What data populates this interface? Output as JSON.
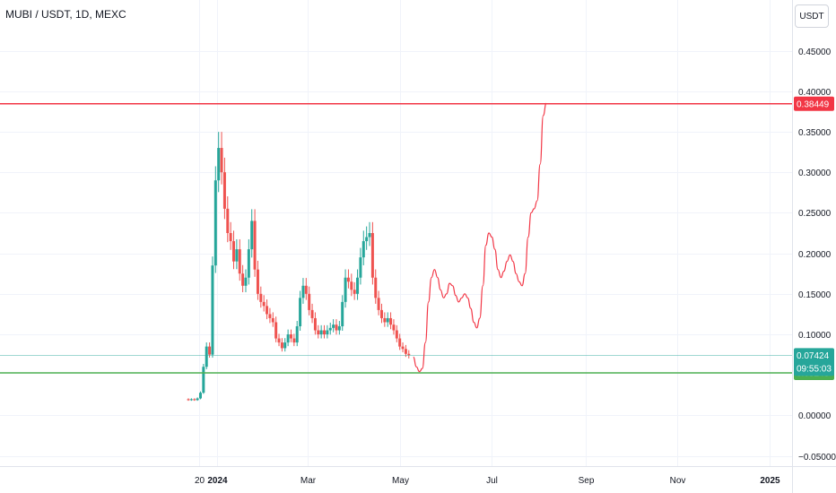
{
  "header": {
    "symbol": "MUBI / USDT, 1D, MEXC"
  },
  "currency_button": {
    "label": "USDT"
  },
  "colors": {
    "up": "#26a69a",
    "down": "#ef5350",
    "resistance": "#f23645",
    "support": "#4caf50",
    "projection": "#f23645",
    "grid": "#f0f3fa"
  },
  "chart_data": {
    "type": "candlestick",
    "title": "MUBI / USDT, 1D, MEXC",
    "ylim": [
      -0.0625,
      0.5125
    ],
    "y_ticks": [
      {
        "value": 0.45,
        "label": "0.45000"
      },
      {
        "value": 0.4,
        "label": "0.40000"
      },
      {
        "value": 0.35,
        "label": "0.35000"
      },
      {
        "value": 0.3,
        "label": "0.30000"
      },
      {
        "value": 0.25,
        "label": "0.25000"
      },
      {
        "value": 0.2,
        "label": "0.20000"
      },
      {
        "value": 0.15,
        "label": "0.15000"
      },
      {
        "value": 0.1,
        "label": "0.10000"
      },
      {
        "value": 0.0,
        "label": "0.00000"
      },
      {
        "value": -0.05,
        "label": "−0.05000"
      }
    ],
    "x_ticks": [
      {
        "date": "2023-12-20",
        "label": "20",
        "bold": false
      },
      {
        "date": "2024-01-01",
        "label": "2024",
        "bold": true
      },
      {
        "date": "2024-03-01",
        "label": "Mar",
        "bold": false
      },
      {
        "date": "2024-05-01",
        "label": "May",
        "bold": false
      },
      {
        "date": "2024-07-01",
        "label": "Jul",
        "bold": false
      },
      {
        "date": "2024-09-01",
        "label": "Sep",
        "bold": false
      },
      {
        "date": "2024-11-01",
        "label": "Nov",
        "bold": false
      },
      {
        "date": "2025-01-01",
        "label": "2025",
        "bold": true
      }
    ],
    "price_closes": [
      [
        "2023-12-11",
        0.02
      ],
      [
        "2023-12-13",
        0.019
      ],
      [
        "2023-12-15",
        0.02
      ],
      [
        "2023-12-17",
        0.019
      ],
      [
        "2023-12-19",
        0.021
      ],
      [
        "2023-12-21",
        0.028
      ],
      [
        "2023-12-23",
        0.06
      ],
      [
        "2023-12-25",
        0.085
      ],
      [
        "2023-12-27",
        0.075
      ],
      [
        "2023-12-29",
        0.185
      ],
      [
        "2023-12-31",
        0.29
      ],
      [
        "2024-01-02",
        0.33
      ],
      [
        "2024-01-04",
        0.3
      ],
      [
        "2024-01-06",
        0.255
      ],
      [
        "2024-01-08",
        0.225
      ],
      [
        "2024-01-10",
        0.215
      ],
      [
        "2024-01-12",
        0.19
      ],
      [
        "2024-01-14",
        0.205
      ],
      [
        "2024-01-16",
        0.175
      ],
      [
        "2024-01-18",
        0.16
      ],
      [
        "2024-01-20",
        0.17
      ],
      [
        "2024-01-22",
        0.205
      ],
      [
        "2024-01-24",
        0.24
      ],
      [
        "2024-01-26",
        0.18
      ],
      [
        "2024-01-28",
        0.15
      ],
      [
        "2024-01-30",
        0.14
      ],
      [
        "2024-02-01",
        0.135
      ],
      [
        "2024-02-03",
        0.125
      ],
      [
        "2024-02-05",
        0.12
      ],
      [
        "2024-02-07",
        0.115
      ],
      [
        "2024-02-09",
        0.095
      ],
      [
        "2024-02-11",
        0.09
      ],
      [
        "2024-02-13",
        0.083
      ],
      [
        "2024-02-15",
        0.09
      ],
      [
        "2024-02-17",
        0.1
      ],
      [
        "2024-02-19",
        0.095
      ],
      [
        "2024-02-21",
        0.09
      ],
      [
        "2024-02-23",
        0.11
      ],
      [
        "2024-02-25",
        0.145
      ],
      [
        "2024-02-27",
        0.16
      ],
      [
        "2024-02-29",
        0.15
      ],
      [
        "2024-03-02",
        0.13
      ],
      [
        "2024-03-04",
        0.12
      ],
      [
        "2024-03-06",
        0.105
      ],
      [
        "2024-03-08",
        0.1
      ],
      [
        "2024-03-10",
        0.105
      ],
      [
        "2024-03-12",
        0.1
      ],
      [
        "2024-03-14",
        0.105
      ],
      [
        "2024-03-16",
        0.108
      ],
      [
        "2024-03-18",
        0.112
      ],
      [
        "2024-03-20",
        0.105
      ],
      [
        "2024-03-22",
        0.11
      ],
      [
        "2024-03-24",
        0.14
      ],
      [
        "2024-03-26",
        0.17
      ],
      [
        "2024-03-28",
        0.165
      ],
      [
        "2024-03-30",
        0.155
      ],
      [
        "2024-04-01",
        0.15
      ],
      [
        "2024-04-03",
        0.17
      ],
      [
        "2024-04-05",
        0.195
      ],
      [
        "2024-04-07",
        0.215
      ],
      [
        "2024-04-09",
        0.22
      ],
      [
        "2024-04-11",
        0.225
      ],
      [
        "2024-04-13",
        0.17
      ],
      [
        "2024-04-15",
        0.145
      ],
      [
        "2024-04-17",
        0.13
      ],
      [
        "2024-04-19",
        0.12
      ],
      [
        "2024-04-21",
        0.115
      ],
      [
        "2024-04-23",
        0.12
      ],
      [
        "2024-04-25",
        0.112
      ],
      [
        "2024-04-27",
        0.105
      ],
      [
        "2024-04-29",
        0.095
      ],
      [
        "2024-05-01",
        0.085
      ],
      [
        "2024-05-03",
        0.082
      ],
      [
        "2024-05-05",
        0.076
      ],
      [
        "2024-05-07",
        0.074
      ]
    ],
    "horizontal_lines": [
      {
        "name": "resistance",
        "value": 0.38449,
        "label": "0.38449"
      },
      {
        "name": "support",
        "value": 0.05248,
        "label": "0.05248"
      }
    ],
    "current_price": {
      "value": 0.07424,
      "label": "0.07424",
      "countdown": "09:55:03"
    },
    "projection_path": [
      [
        "2024-05-10",
        0.072
      ],
      [
        "2024-05-12",
        0.06
      ],
      [
        "2024-05-14",
        0.054
      ],
      [
        "2024-05-16",
        0.058
      ],
      [
        "2024-05-18",
        0.09
      ],
      [
        "2024-05-20",
        0.14
      ],
      [
        "2024-05-22",
        0.17
      ],
      [
        "2024-05-24",
        0.18
      ],
      [
        "2024-05-26",
        0.17
      ],
      [
        "2024-05-28",
        0.155
      ],
      [
        "2024-05-30",
        0.145
      ],
      [
        "2024-06-01",
        0.15
      ],
      [
        "2024-06-03",
        0.163
      ],
      [
        "2024-06-05",
        0.16
      ],
      [
        "2024-06-07",
        0.148
      ],
      [
        "2024-06-09",
        0.14
      ],
      [
        "2024-06-11",
        0.145
      ],
      [
        "2024-06-13",
        0.15
      ],
      [
        "2024-06-15",
        0.145
      ],
      [
        "2024-06-17",
        0.132
      ],
      [
        "2024-06-19",
        0.115
      ],
      [
        "2024-06-21",
        0.108
      ],
      [
        "2024-06-23",
        0.12
      ],
      [
        "2024-06-25",
        0.16
      ],
      [
        "2024-06-27",
        0.21
      ],
      [
        "2024-06-29",
        0.225
      ],
      [
        "2024-07-01",
        0.22
      ],
      [
        "2024-07-03",
        0.205
      ],
      [
        "2024-07-05",
        0.18
      ],
      [
        "2024-07-07",
        0.17
      ],
      [
        "2024-07-09",
        0.178
      ],
      [
        "2024-07-11",
        0.19
      ],
      [
        "2024-07-13",
        0.198
      ],
      [
        "2024-07-15",
        0.19
      ],
      [
        "2024-07-17",
        0.175
      ],
      [
        "2024-07-19",
        0.165
      ],
      [
        "2024-07-21",
        0.16
      ],
      [
        "2024-07-23",
        0.175
      ],
      [
        "2024-07-25",
        0.22
      ],
      [
        "2024-07-27",
        0.25
      ],
      [
        "2024-07-29",
        0.255
      ],
      [
        "2024-07-31",
        0.265
      ],
      [
        "2024-08-02",
        0.31
      ],
      [
        "2024-08-04",
        0.37
      ],
      [
        "2024-08-06",
        0.385
      ]
    ]
  }
}
